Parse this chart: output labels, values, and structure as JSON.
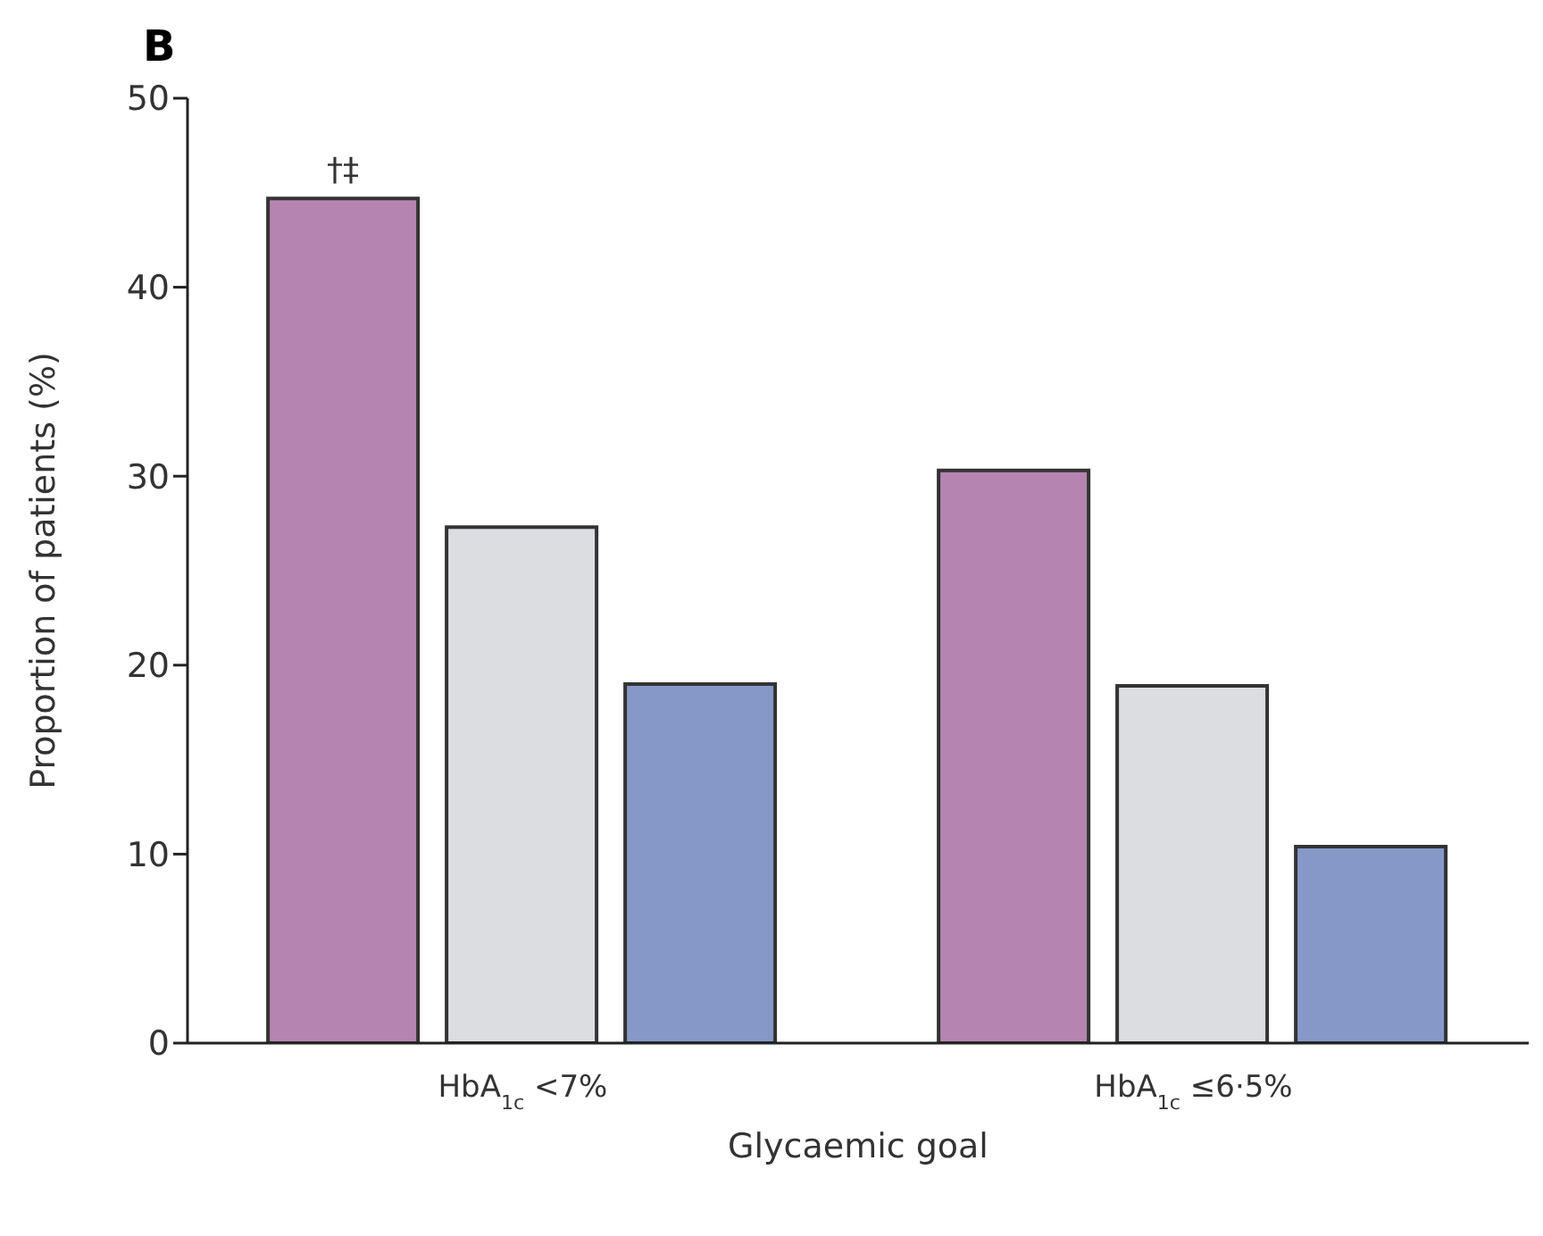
{
  "chart_data": {
    "type": "bar",
    "title": "B",
    "xlabel": "Glycaemic goal",
    "ylabel": "Proportion of patients (%)",
    "categories": [
      "HbA$_{1c}$ <7%",
      "HbA$_{1c}$ ≤6·5%"
    ],
    "series": [
      {
        "color": "#b585b0",
        "values": [
          44.7,
          30.3
        ]
      },
      {
        "color": "#dcdde0",
        "values": [
          27.3,
          18.9
        ]
      },
      {
        "color": "#8598c8",
        "values": [
          19.0,
          10.4
        ]
      }
    ],
    "ylim": [
      0,
      50
    ],
    "yticks": [
      0,
      10,
      20,
      30,
      40,
      50
    ],
    "grid": false,
    "legend": false,
    "annotations": [
      "†‡"
    ]
  }
}
